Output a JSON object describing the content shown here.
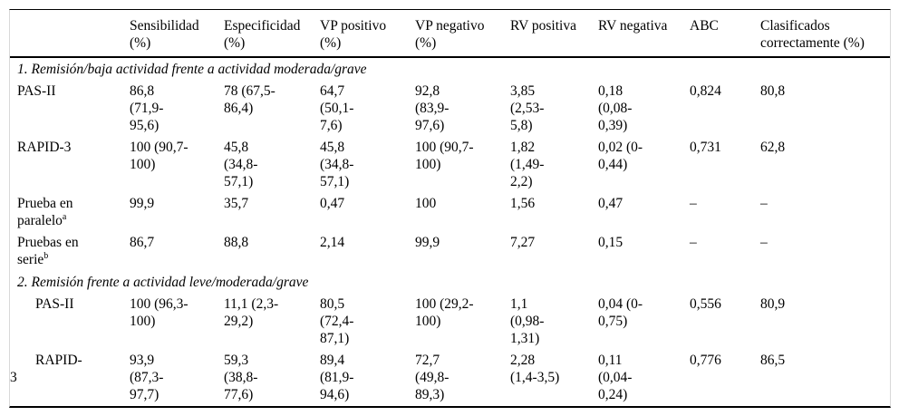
{
  "table": {
    "columns": [
      "Sensibilidad\n(%)",
      "Especificidad\n(%)",
      "VP positivo\n(%)",
      "VP negativo\n(%)",
      "RV positiva",
      "RV negativa",
      "ABC",
      "Clasificados\ncorrectamente (%)"
    ],
    "sections": [
      {
        "heading": "1. Remisión/baja actividad frente a actividad moderada/grave",
        "rows": [
          {
            "label": "PAS-II",
            "cells": [
              "86,8\n(71,9-\n95,6)",
              "78 (67,5-\n86,4)",
              "64,7\n(50,1-\n7,6)",
              "92,8\n(83,9-\n97,6)",
              "3,85\n(2,53-\n5,8)",
              "0,18\n(0,08-\n0,39)",
              "0,824",
              "80,8"
            ]
          },
          {
            "label": "RAPID-3",
            "cells": [
              "100 (90,7-\n100)",
              "45,8\n(34,8-\n57,1)",
              "45,8\n(34,8-\n57,1)",
              "100 (90,7-\n100)",
              "1,82\n(1,49-\n2,2)",
              "0,02 (0-\n0,44)",
              "0,731",
              "62,8"
            ]
          },
          {
            "label": "Prueba en\nparalelo",
            "sup": "a",
            "cells": [
              "99,9",
              "35,7",
              "0,47",
              "100",
              "1,56",
              "0,47",
              "–",
              "–"
            ]
          },
          {
            "label": "Pruebas en\nserie",
            "sup": "b",
            "cells": [
              "86,7",
              "88,8",
              "2,14",
              "99,9",
              "7,27",
              "0,15",
              "–",
              "–"
            ]
          }
        ]
      },
      {
        "heading": "2. Remisión frente a actividad leve/moderada/grave",
        "rows": [
          {
            "label": "PAS-II",
            "cells": [
              "100 (96,3-\n100)",
              "11,1 (2,3-\n29,2)",
              "80,5\n(72,4-\n87,1)",
              "100 (29,2-\n100)",
              "1,1\n(0,98-\n1,31)",
              "0,04 (0-\n0,75)",
              "0,556",
              "80,9"
            ]
          },
          {
            "label": "RAPID-\n3",
            "cells": [
              "93,9\n(87,3-\n97,7)",
              "59,3\n(38,8-\n77,6)",
              "89,4\n(81,9-\n94,6)",
              "72,7\n(49,8-\n89,3)",
              "2,28\n(1,4-3,5)",
              "0,11\n(0,04-\n0,24)",
              "0,776",
              "86,5"
            ]
          }
        ]
      }
    ]
  }
}
